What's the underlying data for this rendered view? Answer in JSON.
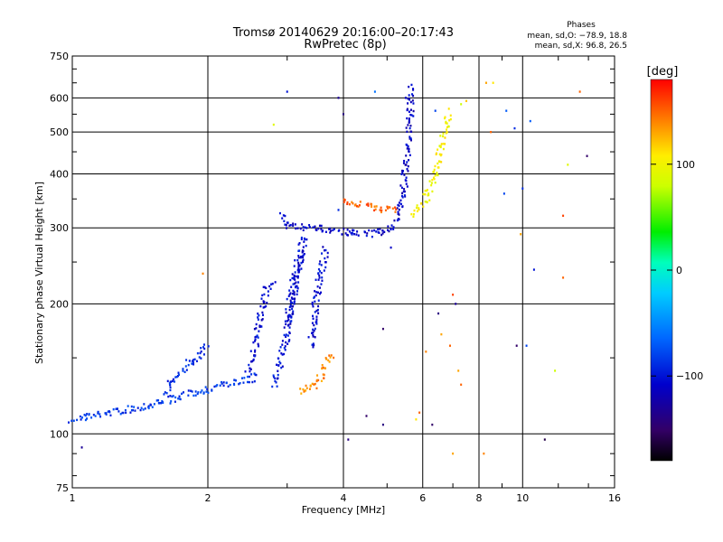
{
  "title": "Tromsø 20140629 20:16:00–20:17:43",
  "subtitle": "RwPretec (8p)",
  "phase_box": {
    "heading": "Phases",
    "line1": "mean, sd,O: −78.9, 18.8",
    "line2": "mean, sd,X:  96.8, 26.5"
  },
  "colorbar": {
    "label": "[deg]",
    "min": -180,
    "max": 180,
    "ticks": [
      "100",
      "0",
      "−100"
    ],
    "tick_values": [
      100,
      0,
      -100
    ]
  },
  "chart_data": {
    "type": "scatter",
    "xlabel": "Frequency [MHz]",
    "ylabel": "Stationary phase Virtual Height [km]",
    "xscale": "log",
    "yscale": "log",
    "xlim": [
      1,
      16
    ],
    "ylim": [
      75,
      750
    ],
    "x_ticks": [
      1,
      2,
      4,
      6,
      8,
      10,
      16
    ],
    "x_tick_labels": [
      "1",
      "2",
      "4",
      "6",
      "8",
      "10",
      "16"
    ],
    "y_ticks": [
      75,
      100,
      200,
      300,
      400,
      500,
      600,
      750
    ],
    "y_tick_labels": [
      "75",
      "100",
      "200",
      "300",
      "400",
      "500",
      "600",
      "750"
    ],
    "grid": true,
    "color_encoding": "phase (deg), rainbow scale",
    "traces": [
      {
        "name": "",
        "phase": -85,
        "points": [
          [
            1.0,
            108
          ],
          [
            1.1,
            110
          ],
          [
            1.2,
            112
          ],
          [
            1.35,
            114
          ],
          [
            1.5,
            117
          ],
          [
            1.65,
            120
          ],
          [
            1.8,
            123
          ],
          [
            2.0,
            127
          ],
          [
            2.2,
            130
          ],
          [
            2.4,
            133
          ],
          [
            2.6,
            136
          ]
        ]
      },
      {
        "name": "",
        "phase": -90,
        "points": [
          [
            1.6,
            125
          ],
          [
            1.7,
            135
          ],
          [
            1.8,
            145
          ],
          [
            1.9,
            150
          ],
          [
            2.0,
            160
          ]
        ]
      },
      {
        "name": "",
        "phase": -105,
        "points": [
          [
            2.45,
            140
          ],
          [
            2.55,
            160
          ],
          [
            2.6,
            180
          ],
          [
            2.65,
            200
          ],
          [
            2.7,
            215
          ],
          [
            2.8,
            225
          ]
        ]
      },
      {
        "name": "",
        "phase": -100,
        "points": [
          [
            2.8,
            130
          ],
          [
            2.9,
            145
          ],
          [
            3.0,
            170
          ],
          [
            3.05,
            200
          ],
          [
            3.1,
            225
          ],
          [
            3.2,
            260
          ],
          [
            3.3,
            290
          ]
        ]
      },
      {
        "name": "",
        "phase": -110,
        "points": [
          [
            3.0,
            180
          ],
          [
            3.1,
            200
          ],
          [
            3.15,
            230
          ],
          [
            3.2,
            250
          ],
          [
            3.25,
            270
          ]
        ]
      },
      {
        "name": "",
        "phase": -105,
        "points": [
          [
            3.4,
            160
          ],
          [
            3.45,
            190
          ],
          [
            3.5,
            210
          ],
          [
            3.55,
            230
          ],
          [
            3.6,
            250
          ],
          [
            3.65,
            270
          ]
        ]
      },
      {
        "name": "",
        "phase": 140,
        "points": [
          [
            3.2,
            125
          ],
          [
            3.35,
            127
          ],
          [
            3.5,
            130
          ],
          [
            3.6,
            140
          ],
          [
            3.7,
            150
          ],
          [
            3.8,
            148
          ]
        ]
      },
      {
        "name": "",
        "phase": -110,
        "points": [
          [
            2.9,
            320
          ],
          [
            3.0,
            305
          ],
          [
            3.2,
            302
          ],
          [
            3.5,
            300
          ],
          [
            3.8,
            296
          ],
          [
            4.1,
            292
          ],
          [
            4.4,
            290
          ],
          [
            4.7,
            292
          ],
          [
            5.0,
            296
          ],
          [
            5.2,
            305
          ],
          [
            5.35,
            330
          ],
          [
            5.45,
            380
          ],
          [
            5.55,
            450
          ],
          [
            5.6,
            520
          ],
          [
            5.65,
            600
          ],
          [
            5.68,
            640
          ]
        ]
      },
      {
        "name": "",
        "phase": 150,
        "points": [
          [
            4.0,
            350
          ],
          [
            4.3,
            340
          ],
          [
            4.6,
            335
          ],
          [
            5.0,
            330
          ],
          [
            5.3,
            330
          ]
        ]
      },
      {
        "name": "",
        "phase": 100,
        "points": [
          [
            5.7,
            320
          ],
          [
            5.9,
            330
          ],
          [
            6.1,
            350
          ],
          [
            6.3,
            380
          ],
          [
            6.5,
            430
          ],
          [
            6.7,
            500
          ],
          [
            6.85,
            560
          ]
        ]
      }
    ],
    "scatter_points": [
      [
        3.0,
        620,
        -100
      ],
      [
        4.7,
        620,
        -60
      ],
      [
        5.5,
        600,
        -110
      ],
      [
        6.4,
        560,
        -80
      ],
      [
        7.3,
        580,
        80
      ],
      [
        8.3,
        650,
        130
      ],
      [
        8.6,
        650,
        110
      ],
      [
        9.2,
        560,
        -70
      ],
      [
        9.6,
        510,
        -90
      ],
      [
        10.4,
        530,
        -70
      ],
      [
        13.4,
        620,
        150
      ],
      [
        12.6,
        420,
        90
      ],
      [
        13.9,
        440,
        -150
      ],
      [
        9.1,
        360,
        -80
      ],
      [
        10.0,
        370,
        -90
      ],
      [
        12.3,
        320,
        160
      ],
      [
        9.9,
        290,
        130
      ],
      [
        10.6,
        240,
        -100
      ],
      [
        12.3,
        230,
        150
      ],
      [
        7.0,
        210,
        160
      ],
      [
        7.1,
        200,
        -130
      ],
      [
        6.5,
        190,
        -140
      ],
      [
        5.1,
        270,
        -110
      ],
      [
        3.9,
        330,
        -90
      ],
      [
        4.9,
        175,
        -150
      ],
      [
        6.1,
        155,
        140
      ],
      [
        6.6,
        170,
        130
      ],
      [
        6.9,
        160,
        150
      ],
      [
        7.2,
        140,
        130
      ],
      [
        7.3,
        130,
        150
      ],
      [
        9.7,
        160,
        -150
      ],
      [
        10.2,
        160,
        -80
      ],
      [
        11.8,
        140,
        80
      ],
      [
        4.5,
        110,
        -150
      ],
      [
        4.9,
        105,
        -140
      ],
      [
        5.8,
        108,
        110
      ],
      [
        5.9,
        112,
        150
      ],
      [
        6.3,
        105,
        -150
      ],
      [
        7.0,
        90,
        130
      ],
      [
        8.2,
        90,
        140
      ],
      [
        1.05,
        93,
        -130
      ],
      [
        1.95,
        235,
        140
      ],
      [
        2.8,
        520,
        90
      ],
      [
        4.1,
        97,
        -140
      ],
      [
        11.2,
        97,
        -160
      ],
      [
        3.9,
        600,
        -130
      ],
      [
        4.0,
        550,
        -140
      ],
      [
        7.5,
        590,
        120
      ],
      [
        8.5,
        500,
        150
      ]
    ]
  }
}
